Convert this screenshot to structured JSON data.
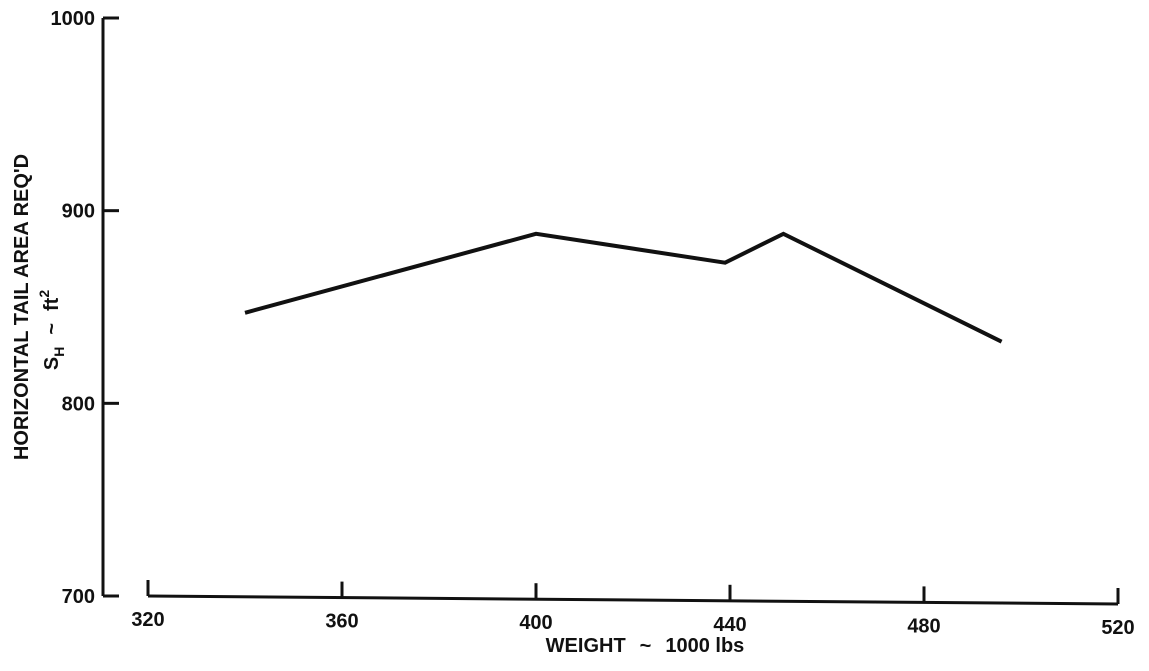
{
  "chart_data": {
    "type": "line",
    "xlabel_parts": [
      "WEIGHT",
      "~",
      "1000 lbs"
    ],
    "ylabel_line1": "HORIZONTAL TAIL AREA REQ'D",
    "ylabel_line2_parts": [
      "S",
      "H",
      "~",
      "ft",
      "2"
    ],
    "xlim": [
      320,
      520
    ],
    "ylim": [
      700,
      1000
    ],
    "x_ticks": [
      320,
      360,
      400,
      440,
      480,
      520
    ],
    "y_ticks": [
      700,
      800,
      900,
      1000
    ],
    "x_tick_labels": [
      "320",
      "360",
      "400",
      "440",
      "480",
      "520"
    ],
    "y_tick_labels": [
      "700",
      "800",
      "900",
      "1000"
    ],
    "grid": false,
    "series": [
      {
        "x": [
          340,
          400,
          439,
          451,
          496
        ],
        "y": [
          847,
          888,
          873,
          888,
          832
        ]
      }
    ]
  }
}
